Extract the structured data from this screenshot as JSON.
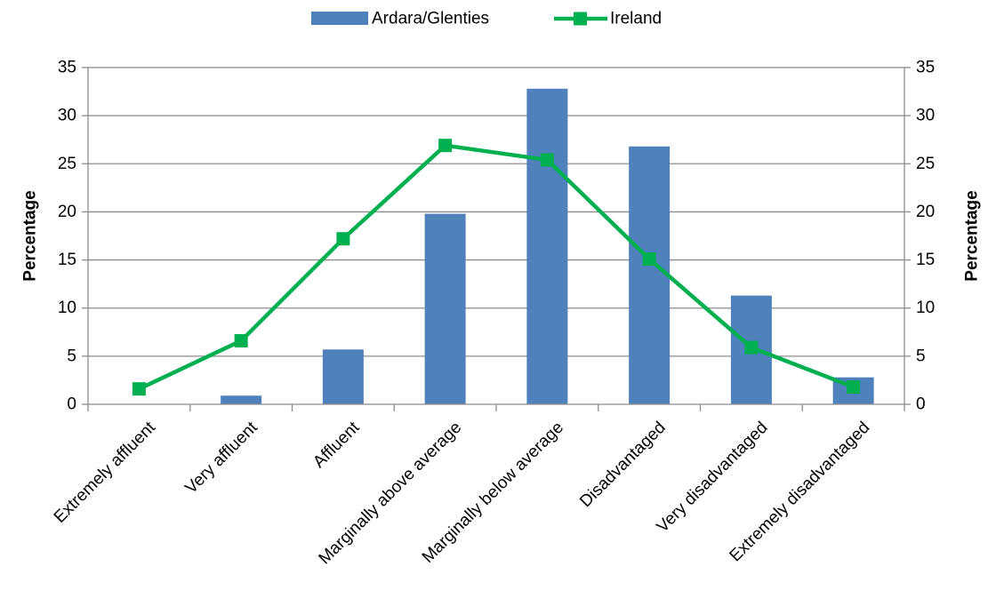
{
  "chart_data": {
    "type": "bar",
    "categories": [
      "Extremely affluent",
      "Very affluent",
      "Affluent",
      "Marginally above average",
      "Marginally below average",
      "Disadvantaged",
      "Very disadvantaged",
      "Extremely disadvantaged"
    ],
    "series": [
      {
        "name": "Ardara/Glenties",
        "kind": "bar",
        "color": "#4F81BD",
        "values": [
          0,
          0.9,
          5.7,
          19.8,
          32.8,
          26.8,
          11.3,
          2.8
        ]
      },
      {
        "name": "Ireland",
        "kind": "line",
        "marker": "square",
        "color": "#00B050",
        "values": [
          1.6,
          6.6,
          17.2,
          26.9,
          25.4,
          15.1,
          5.9,
          1.8
        ]
      }
    ],
    "ylabel": "Percentage",
    "y2label": "Percentage",
    "ylim": [
      0,
      35
    ],
    "y2lim": [
      0,
      35
    ],
    "yticks": [
      0,
      5,
      10,
      15,
      20,
      25,
      30,
      35
    ],
    "grid": true,
    "legend": "top"
  }
}
